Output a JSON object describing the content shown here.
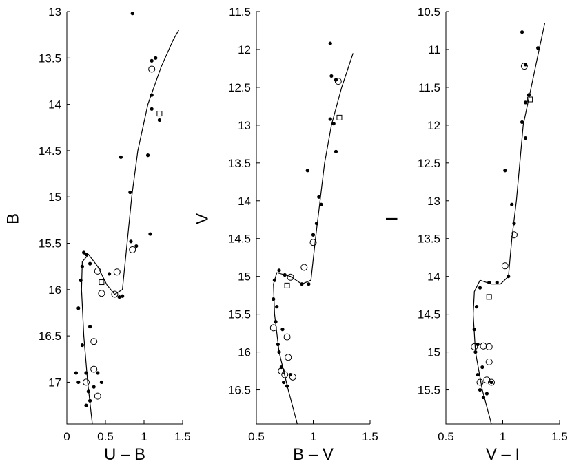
{
  "chart_data": [
    {
      "type": "scatter",
      "xlabel": "U – B",
      "ylabel": "B",
      "xlim": [
        0,
        1.5
      ],
      "ylim": [
        17.45,
        13.0
      ],
      "y_inverted": true,
      "xticks": [
        "0",
        "0.5",
        "1",
        "1.5"
      ],
      "yticks": [
        "13",
        "13.5",
        "14",
        "14.5",
        "15",
        "15.5",
        "16",
        "16.5",
        "17"
      ],
      "isochrone": [
        [
          0.33,
          17.45
        ],
        [
          0.27,
          17.0
        ],
        [
          0.22,
          16.5
        ],
        [
          0.19,
          16.0
        ],
        [
          0.2,
          15.7
        ],
        [
          0.28,
          15.62
        ],
        [
          0.4,
          15.75
        ],
        [
          0.52,
          15.95
        ],
        [
          0.62,
          16.05
        ],
        [
          0.72,
          16.0
        ],
        [
          0.78,
          15.5
        ],
        [
          0.84,
          15.0
        ],
        [
          0.92,
          14.5
        ],
        [
          1.05,
          14.0
        ],
        [
          1.22,
          13.6
        ],
        [
          1.38,
          13.3
        ],
        [
          1.45,
          13.2
        ]
      ],
      "filled_points": [
        [
          0.85,
          13.02
        ],
        [
          1.15,
          13.5
        ],
        [
          1.1,
          13.53
        ],
        [
          1.1,
          13.9
        ],
        [
          1.1,
          14.05
        ],
        [
          1.2,
          14.17
        ],
        [
          1.05,
          14.55
        ],
        [
          0.7,
          14.57
        ],
        [
          0.82,
          14.95
        ],
        [
          1.08,
          15.4
        ],
        [
          0.9,
          15.53
        ],
        [
          0.83,
          15.48
        ],
        [
          0.72,
          16.07
        ],
        [
          0.68,
          16.08
        ],
        [
          0.55,
          15.83
        ],
        [
          0.3,
          15.72
        ],
        [
          0.25,
          15.62
        ],
        [
          0.22,
          15.6
        ],
        [
          0.2,
          15.75
        ],
        [
          0.18,
          15.9
        ],
        [
          0.15,
          16.2
        ],
        [
          0.2,
          16.6
        ],
        [
          0.25,
          16.9
        ],
        [
          0.28,
          17.1
        ],
        [
          0.3,
          17.2
        ],
        [
          0.35,
          17.05
        ],
        [
          0.4,
          16.9
        ],
        [
          0.15,
          17.0
        ],
        [
          0.25,
          17.25
        ],
        [
          0.45,
          17.0
        ],
        [
          0.12,
          16.9
        ],
        [
          0.3,
          16.4
        ]
      ],
      "open_points": [
        [
          1.1,
          13.62
        ],
        [
          0.85,
          15.57
        ],
        [
          0.4,
          15.8
        ],
        [
          0.65,
          15.81
        ],
        [
          0.45,
          16.04
        ],
        [
          0.62,
          16.05
        ],
        [
          0.35,
          16.56
        ],
        [
          0.35,
          16.86
        ],
        [
          0.4,
          17.15
        ],
        [
          0.25,
          17.0
        ]
      ],
      "squares": [
        [
          1.2,
          14.1
        ],
        [
          0.45,
          15.92
        ]
      ]
    },
    {
      "type": "scatter",
      "xlabel": "B – V",
      "ylabel": "V",
      "xlim": [
        0.5,
        1.5
      ],
      "ylim": [
        16.95,
        11.5
      ],
      "y_inverted": true,
      "xticks": [
        "0.5",
        "1",
        "1.5"
      ],
      "yticks": [
        "11.5",
        "12",
        "12.5",
        "13",
        "13.5",
        "14",
        "14.5",
        "15",
        "15.5",
        "16",
        "16.5"
      ],
      "isochrone": [
        [
          0.86,
          16.95
        ],
        [
          0.78,
          16.5
        ],
        [
          0.7,
          16.0
        ],
        [
          0.66,
          15.5
        ],
        [
          0.65,
          15.1
        ],
        [
          0.68,
          14.95
        ],
        [
          0.8,
          15.0
        ],
        [
          0.9,
          15.1
        ],
        [
          0.98,
          15.05
        ],
        [
          1.02,
          14.5
        ],
        [
          1.06,
          14.0
        ],
        [
          1.1,
          13.5
        ],
        [
          1.16,
          13.0
        ],
        [
          1.25,
          12.5
        ],
        [
          1.35,
          12.05
        ]
      ],
      "filled_points": [
        [
          1.15,
          11.92
        ],
        [
          1.16,
          12.35
        ],
        [
          1.2,
          12.4
        ],
        [
          1.15,
          12.92
        ],
        [
          1.18,
          12.98
        ],
        [
          1.2,
          13.35
        ],
        [
          0.95,
          13.6
        ],
        [
          1.05,
          13.95
        ],
        [
          1.07,
          14.05
        ],
        [
          1.03,
          14.3
        ],
        [
          1.0,
          14.45
        ],
        [
          0.9,
          15.1
        ],
        [
          0.96,
          15.1
        ],
        [
          0.75,
          14.98
        ],
        [
          0.7,
          14.92
        ],
        [
          0.66,
          15.05
        ],
        [
          0.65,
          15.3
        ],
        [
          0.67,
          15.6
        ],
        [
          0.69,
          15.9
        ],
        [
          0.72,
          16.2
        ],
        [
          0.74,
          16.4
        ],
        [
          0.77,
          16.45
        ],
        [
          0.8,
          16.3
        ],
        [
          0.7,
          16.0
        ],
        [
          0.68,
          15.4
        ],
        [
          0.73,
          15.7
        ]
      ],
      "open_points": [
        [
          1.22,
          12.42
        ],
        [
          0.92,
          14.88
        ],
        [
          1.0,
          14.55
        ],
        [
          0.8,
          15.01
        ],
        [
          0.65,
          15.68
        ],
        [
          0.77,
          15.8
        ],
        [
          0.78,
          16.07
        ],
        [
          0.72,
          16.25
        ],
        [
          0.82,
          16.33
        ],
        [
          0.75,
          16.3
        ]
      ],
      "squares": [
        [
          1.23,
          12.9
        ],
        [
          0.77,
          15.12
        ]
      ]
    },
    {
      "type": "scatter",
      "xlabel": "V – I",
      "ylabel": "I",
      "xlim": [
        0.5,
        1.5
      ],
      "ylim": [
        15.95,
        10.5
      ],
      "y_inverted": true,
      "xticks": [
        "0.5",
        "1",
        "1.5"
      ],
      "yticks": [
        "10.5",
        "11",
        "11.5",
        "12",
        "12.5",
        "13",
        "13.5",
        "14",
        "14.5",
        "15",
        "15.5"
      ],
      "isochrone": [
        [
          0.9,
          15.95
        ],
        [
          0.82,
          15.5
        ],
        [
          0.76,
          15.0
        ],
        [
          0.74,
          14.5
        ],
        [
          0.75,
          14.2
        ],
        [
          0.8,
          14.05
        ],
        [
          0.9,
          14.1
        ],
        [
          0.98,
          14.1
        ],
        [
          1.05,
          14.0
        ],
        [
          1.08,
          13.5
        ],
        [
          1.12,
          13.0
        ],
        [
          1.15,
          12.5
        ],
        [
          1.18,
          12.0
        ],
        [
          1.25,
          11.5
        ],
        [
          1.32,
          11.0
        ],
        [
          1.37,
          10.65
        ]
      ],
      "filled_points": [
        [
          1.17,
          10.77
        ],
        [
          1.31,
          10.98
        ],
        [
          1.2,
          11.2
        ],
        [
          1.23,
          11.6
        ],
        [
          1.2,
          11.7
        ],
        [
          1.17,
          11.96
        ],
        [
          1.2,
          12.17
        ],
        [
          1.02,
          12.6
        ],
        [
          1.08,
          13.05
        ],
        [
          1.1,
          13.3
        ],
        [
          1.05,
          14.0
        ],
        [
          0.95,
          14.08
        ],
        [
          0.88,
          14.08
        ],
        [
          0.8,
          14.15
        ],
        [
          0.77,
          14.4
        ],
        [
          0.75,
          14.7
        ],
        [
          0.76,
          15.0
        ],
        [
          0.78,
          15.3
        ],
        [
          0.8,
          15.5
        ],
        [
          0.83,
          15.6
        ],
        [
          0.86,
          15.55
        ],
        [
          0.9,
          15.4
        ],
        [
          0.78,
          14.9
        ],
        [
          0.82,
          15.2
        ]
      ],
      "open_points": [
        [
          1.19,
          11.22
        ],
        [
          1.1,
          13.45
        ],
        [
          1.02,
          13.86
        ],
        [
          0.88,
          14.93
        ],
        [
          0.83,
          14.92
        ],
        [
          0.88,
          15.13
        ],
        [
          0.8,
          15.4
        ],
        [
          0.86,
          15.37
        ],
        [
          0.9,
          15.4
        ],
        [
          0.75,
          14.93
        ]
      ],
      "squares": [
        [
          1.24,
          11.66
        ],
        [
          0.88,
          14.27
        ]
      ]
    }
  ]
}
